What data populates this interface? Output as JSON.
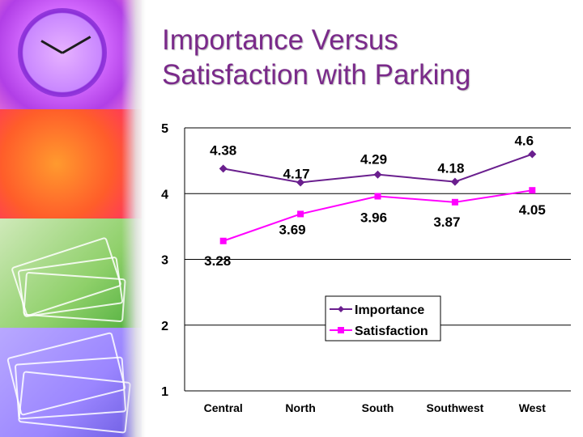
{
  "title": {
    "line1": "Importance Versus",
    "line2": "Satisfaction with Parking"
  },
  "colors": {
    "title": "#7a2a8a",
    "importance": "#6a1f8e",
    "satisfaction": "#ff00ff"
  },
  "chart_data": {
    "type": "line",
    "categories": [
      "Central",
      "North",
      "South",
      "Southwest",
      "West"
    ],
    "ylim": [
      1,
      5
    ],
    "yticks": [
      1,
      2,
      3,
      4,
      5
    ],
    "grid": true,
    "legend_position": "center-right",
    "series": [
      {
        "name": "Importance",
        "values": [
          4.38,
          4.17,
          4.29,
          4.18,
          4.6
        ],
        "labels": [
          "4.38",
          "4.17",
          "4.29",
          "4.18",
          "4.6"
        ],
        "marker": "diamond"
      },
      {
        "name": "Satisfaction",
        "values": [
          3.28,
          3.69,
          3.96,
          3.87,
          4.05
        ],
        "labels": [
          "3.28",
          "3.69",
          "3.96",
          "3.87",
          "4.05"
        ],
        "marker": "square"
      }
    ]
  }
}
